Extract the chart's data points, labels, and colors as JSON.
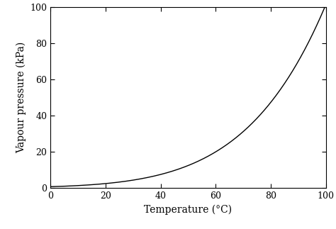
{
  "xlabel": "Temperature (°C)",
  "ylabel": "Vapour pressure (kPa)",
  "xlim": [
    0,
    100
  ],
  "ylim": [
    0,
    100
  ],
  "xticks": [
    0,
    20,
    40,
    60,
    80,
    100
  ],
  "yticks": [
    0,
    20,
    40,
    60,
    80,
    100
  ],
  "line_color": "#000000",
  "line_width": 1.0,
  "background_color": "#ffffff",
  "figsize": [
    4.74,
    3.23
  ],
  "dpi": 100,
  "font_family": "serif",
  "tick_labelsize": 9,
  "axis_labelsize": 10
}
